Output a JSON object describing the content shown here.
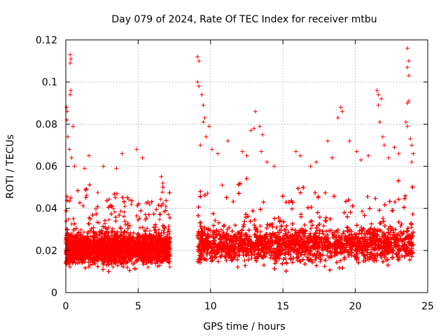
{
  "chart_data": {
    "type": "scatter",
    "title": "Day 079 of 2024, Rate Of TEC Index for receiver mtbu",
    "xlabel": "GPS time / hours",
    "ylabel": "ROTI / TECUs",
    "xlim": [
      0,
      25
    ],
    "ylim": [
      0,
      0.12
    ],
    "x_ticks": [
      0,
      5,
      10,
      15,
      20,
      25
    ],
    "x_tick_labels": [
      "0",
      "5",
      "10",
      "15",
      "20",
      "25"
    ],
    "y_ticks": [
      0,
      0.02,
      0.04,
      0.06,
      0.08,
      0.1,
      0.12
    ],
    "y_tick_labels": [
      "0",
      "0.02",
      "0.04",
      "0.06",
      "0.08",
      "0.1",
      "0.12"
    ],
    "grid": true,
    "marker": "plus",
    "colors": {
      "series": "#ff0000",
      "grid": "#a0a0a0",
      "axis": "#000000"
    },
    "series": [
      {
        "name": "ROTI",
        "baseline_segments": [
          {
            "x_start": 0.0,
            "x_end": 7.2,
            "y_mean": 0.021,
            "y_spread": 0.012,
            "density_per_hour": 900
          },
          {
            "x_start": 9.1,
            "x_end": 24.0,
            "y_mean": 0.023,
            "y_spread": 0.014,
            "density_per_hour": 900
          }
        ],
        "notable_points": [
          {
            "x": 0.3,
            "y": 0.113
          },
          {
            "x": 0.35,
            "y": 0.111
          },
          {
            "x": 0.3,
            "y": 0.109
          },
          {
            "x": 0.35,
            "y": 0.096
          },
          {
            "x": 0.3,
            "y": 0.094
          },
          {
            "x": 0.05,
            "y": 0.088
          },
          {
            "x": 0.1,
            "y": 0.086
          },
          {
            "x": 0.08,
            "y": 0.082
          },
          {
            "x": 0.5,
            "y": 0.079
          },
          {
            "x": 0.15,
            "y": 0.074
          },
          {
            "x": 0.25,
            "y": 0.068
          },
          {
            "x": 0.4,
            "y": 0.064
          },
          {
            "x": 0.6,
            "y": 0.06
          },
          {
            "x": 1.6,
            "y": 0.065
          },
          {
            "x": 1.3,
            "y": 0.059
          },
          {
            "x": 2.6,
            "y": 0.06
          },
          {
            "x": 3.5,
            "y": 0.059
          },
          {
            "x": 3.9,
            "y": 0.066
          },
          {
            "x": 4.9,
            "y": 0.068
          },
          {
            "x": 5.3,
            "y": 0.064
          },
          {
            "x": 6.6,
            "y": 0.055
          },
          {
            "x": 6.7,
            "y": 0.052
          },
          {
            "x": 9.1,
            "y": 0.112
          },
          {
            "x": 9.2,
            "y": 0.11
          },
          {
            "x": 9.1,
            "y": 0.1
          },
          {
            "x": 9.2,
            "y": 0.098
          },
          {
            "x": 9.4,
            "y": 0.094
          },
          {
            "x": 9.5,
            "y": 0.089
          },
          {
            "x": 9.6,
            "y": 0.083
          },
          {
            "x": 9.5,
            "y": 0.081
          },
          {
            "x": 9.9,
            "y": 0.079
          },
          {
            "x": 9.7,
            "y": 0.074
          },
          {
            "x": 9.3,
            "y": 0.07
          },
          {
            "x": 10.1,
            "y": 0.068
          },
          {
            "x": 10.5,
            "y": 0.066
          },
          {
            "x": 11.2,
            "y": 0.072
          },
          {
            "x": 12.2,
            "y": 0.067
          },
          {
            "x": 12.5,
            "y": 0.065
          },
          {
            "x": 12.8,
            "y": 0.077
          },
          {
            "x": 13.0,
            "y": 0.078
          },
          {
            "x": 13.1,
            "y": 0.086
          },
          {
            "x": 13.4,
            "y": 0.079
          },
          {
            "x": 13.6,
            "y": 0.075
          },
          {
            "x": 13.5,
            "y": 0.067
          },
          {
            "x": 13.9,
            "y": 0.062
          },
          {
            "x": 14.4,
            "y": 0.06
          },
          {
            "x": 15.9,
            "y": 0.067
          },
          {
            "x": 16.2,
            "y": 0.065
          },
          {
            "x": 16.9,
            "y": 0.06
          },
          {
            "x": 17.3,
            "y": 0.062
          },
          {
            "x": 18.1,
            "y": 0.072
          },
          {
            "x": 18.4,
            "y": 0.064
          },
          {
            "x": 18.8,
            "y": 0.083
          },
          {
            "x": 19.0,
            "y": 0.088
          },
          {
            "x": 19.1,
            "y": 0.086
          },
          {
            "x": 19.6,
            "y": 0.072
          },
          {
            "x": 20.1,
            "y": 0.067
          },
          {
            "x": 20.4,
            "y": 0.063
          },
          {
            "x": 20.9,
            "y": 0.065
          },
          {
            "x": 21.5,
            "y": 0.096
          },
          {
            "x": 21.6,
            "y": 0.094
          },
          {
            "x": 21.8,
            "y": 0.092
          },
          {
            "x": 21.6,
            "y": 0.089
          },
          {
            "x": 21.7,
            "y": 0.081
          },
          {
            "x": 21.9,
            "y": 0.074
          },
          {
            "x": 22.0,
            "y": 0.07
          },
          {
            "x": 22.3,
            "y": 0.064
          },
          {
            "x": 22.7,
            "y": 0.069
          },
          {
            "x": 23.0,
            "y": 0.066
          },
          {
            "x": 23.6,
            "y": 0.116
          },
          {
            "x": 23.7,
            "y": 0.11
          },
          {
            "x": 23.6,
            "y": 0.107
          },
          {
            "x": 23.7,
            "y": 0.103
          },
          {
            "x": 23.7,
            "y": 0.091
          },
          {
            "x": 23.6,
            "y": 0.09
          },
          {
            "x": 23.5,
            "y": 0.081
          },
          {
            "x": 23.6,
            "y": 0.079
          },
          {
            "x": 23.8,
            "y": 0.073
          },
          {
            "x": 23.9,
            "y": 0.07
          },
          {
            "x": 24.0,
            "y": 0.066
          },
          {
            "x": 23.9,
            "y": 0.062
          }
        ]
      }
    ]
  }
}
